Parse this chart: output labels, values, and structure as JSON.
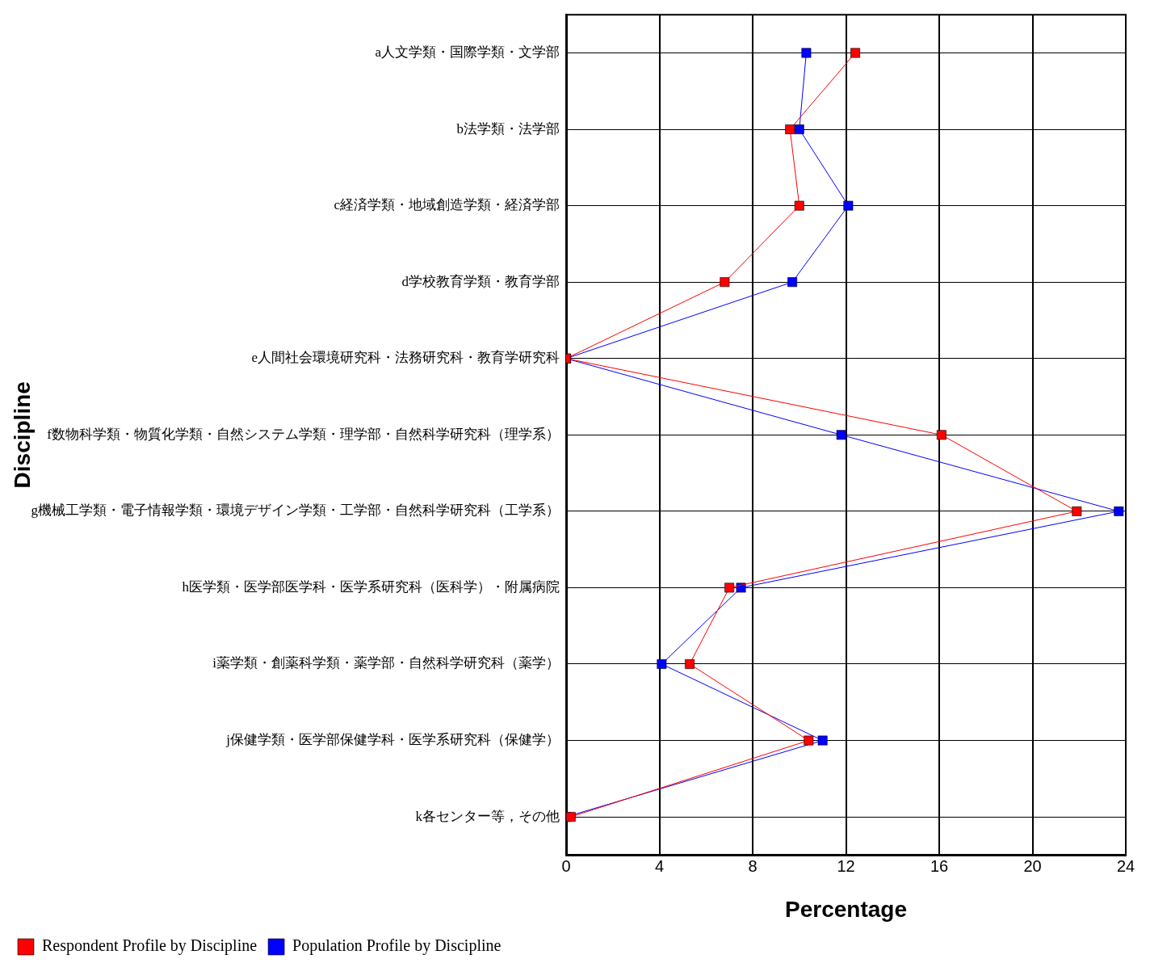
{
  "chart_data": {
    "type": "line",
    "orientation": "horizontal",
    "xlabel": "Percentage",
    "ylabel": "Discipline",
    "categories": [
      "a人文学類・国際学類・文学部",
      "b法学類・法学部",
      "c経済学類・地域創造学類・経済学部",
      "d学校教育学類・教育学部",
      "e人間社会環境研究科・法務研究科・教育学研究科",
      "f数物科学類・物質化学類・自然システム学類・理学部・自然科学研究科（理学系）",
      "g機械工学類・電子情報学類・環境デザイン学類・工学部・自然科学研究科（工学系）",
      "h医学類・医学部医学科・医学系研究科（医科学）・附属病院",
      "i薬学類・創薬科学類・薬学部・自然科学研究科（薬学）",
      "j保健学類・医学部保健学科・医学系研究科（保健学）",
      "k各センター等，その他"
    ],
    "series": [
      {
        "name": "Respondent Profile by Discipline",
        "color": "#ff0000",
        "values": [
          12.4,
          9.6,
          10.0,
          6.8,
          0,
          16.1,
          21.9,
          7.0,
          5.3,
          10.4,
          0.2
        ]
      },
      {
        "name": "Population Profile by Discipline",
        "color": "#0000ff",
        "values": [
          10.3,
          10.0,
          12.1,
          9.7,
          0,
          11.8,
          23.7,
          7.5,
          4.1,
          11.0,
          0
        ]
      }
    ],
    "xlim": [
      0,
      24
    ],
    "xticks": [
      0,
      4,
      8,
      12,
      16,
      20,
      24
    ],
    "grid": true,
    "legend": "bottom left",
    "marker": "square",
    "line_style": "solid"
  }
}
